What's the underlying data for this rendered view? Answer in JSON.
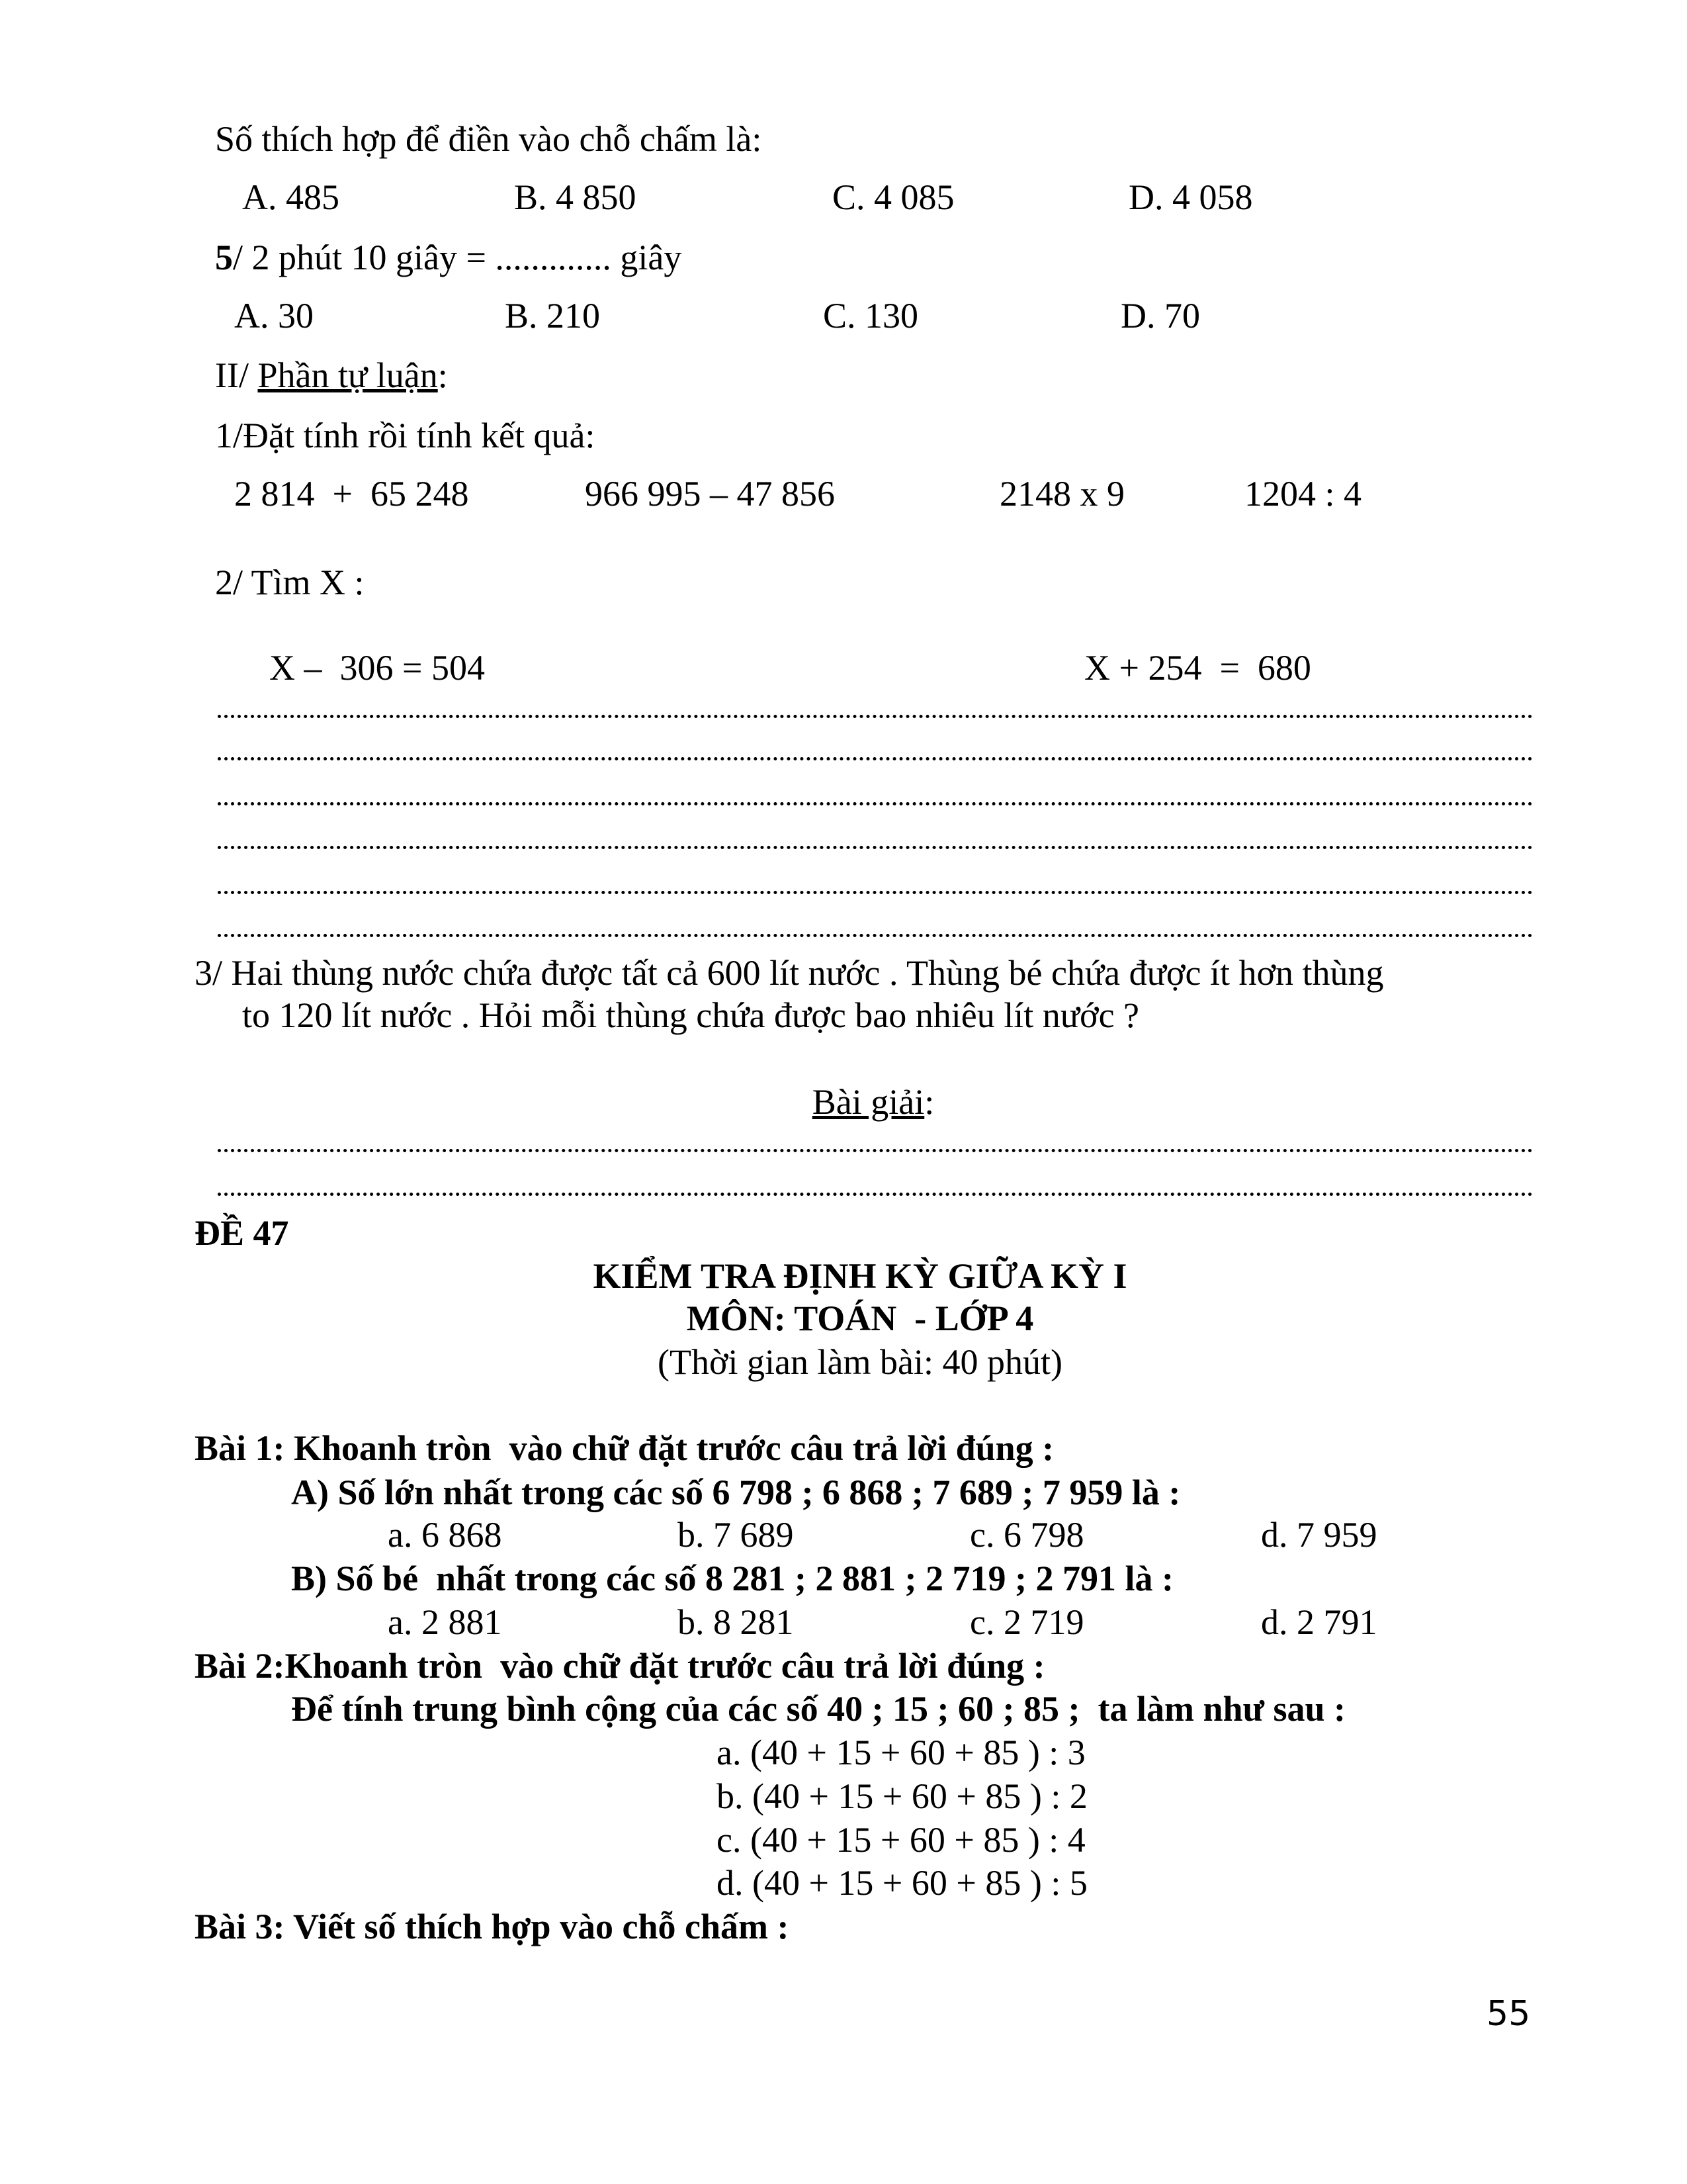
{
  "q4_prompt": "Số thích hợp để điền vào chỗ chấm là:",
  "q4_options": [
    "A. 485",
    "B. 4 850",
    "C. 4 085",
    "D. 4 058"
  ],
  "q5_number": "5",
  "q5_text": "/ 2 phút 10 giây = ............. giây",
  "q5_options": [
    "A. 30",
    "B. 210",
    "C. 130",
    "D. 70"
  ],
  "part2_prefix": "II/ ",
  "part2_title": "Phần tự luận",
  "part2_suffix": ":",
  "ex1_title": "1/Đặt tính rồi tính kết quả:",
  "ex1_items": [
    "2 814  +  65 248",
    "966 995 – 47 856",
    "2148 x 9",
    "1204 : 4"
  ],
  "ex2_title": "2/ Tìm X :",
  "ex2_items": [
    "X –  306 = 504",
    "X + 254  =  680"
  ],
  "ex3_line1": "3/ Hai thùng nước chứa được tất cả 600 lít nước . Thùng bé chứa được ít hơn thùng",
  "ex3_line2": "to 120 lít nước . Hỏi mỗi thùng chứa được bao nhiêu lít nước ?",
  "solution_label": "Bài giải",
  "solution_suffix": ":",
  "de_label": "ĐỀ 47",
  "header_title": "KIỂM TRA ĐỊNH KỲ GIỮA KỲ I",
  "header_subject": "MÔN: TOÁN  - LỚP 4",
  "header_time": "(Thời gian làm bài: 40 phút)",
  "bai1_title": "Bài 1: Khoanh tròn  vào chữ đặt trước câu trả lời đúng :",
  "bai1_a_question": "A) Số lớn nhất trong các số 6 798 ; 6 868 ; 7 689 ; 7 959 là :",
  "bai1_a_options": [
    "a. 6 868",
    "b. 7 689",
    "c. 6 798",
    "d. 7 959"
  ],
  "bai1_b_question": "B) Số bé  nhất trong các số 8 281 ; 2 881 ; 2 719 ; 2 791 là :",
  "bai1_b_options": [
    "a. 2 881",
    "b. 8 281",
    "c. 2 719",
    "d. 2 791"
  ],
  "bai2_title": "Bài 2:Khoanh tròn  vào chữ đặt trước câu trả lời đúng :",
  "bai2_question": "Để tính trung bình cộng của các số 40 ; 15 ; 60 ; 85 ;  ta làm như sau :",
  "bai2_options": [
    "a. (40 + 15 + 60 + 85 ) : 3",
    "b. (40 + 15 + 60 + 85 ) : 2",
    "c. (40 + 15 + 60 + 85 ) : 4",
    "d. (40 + 15 + 60 + 85 ) : 5"
  ],
  "bai3_title": "Bài 3: Viết số thích hợp vào chỗ chấm :",
  "page_number": "55"
}
